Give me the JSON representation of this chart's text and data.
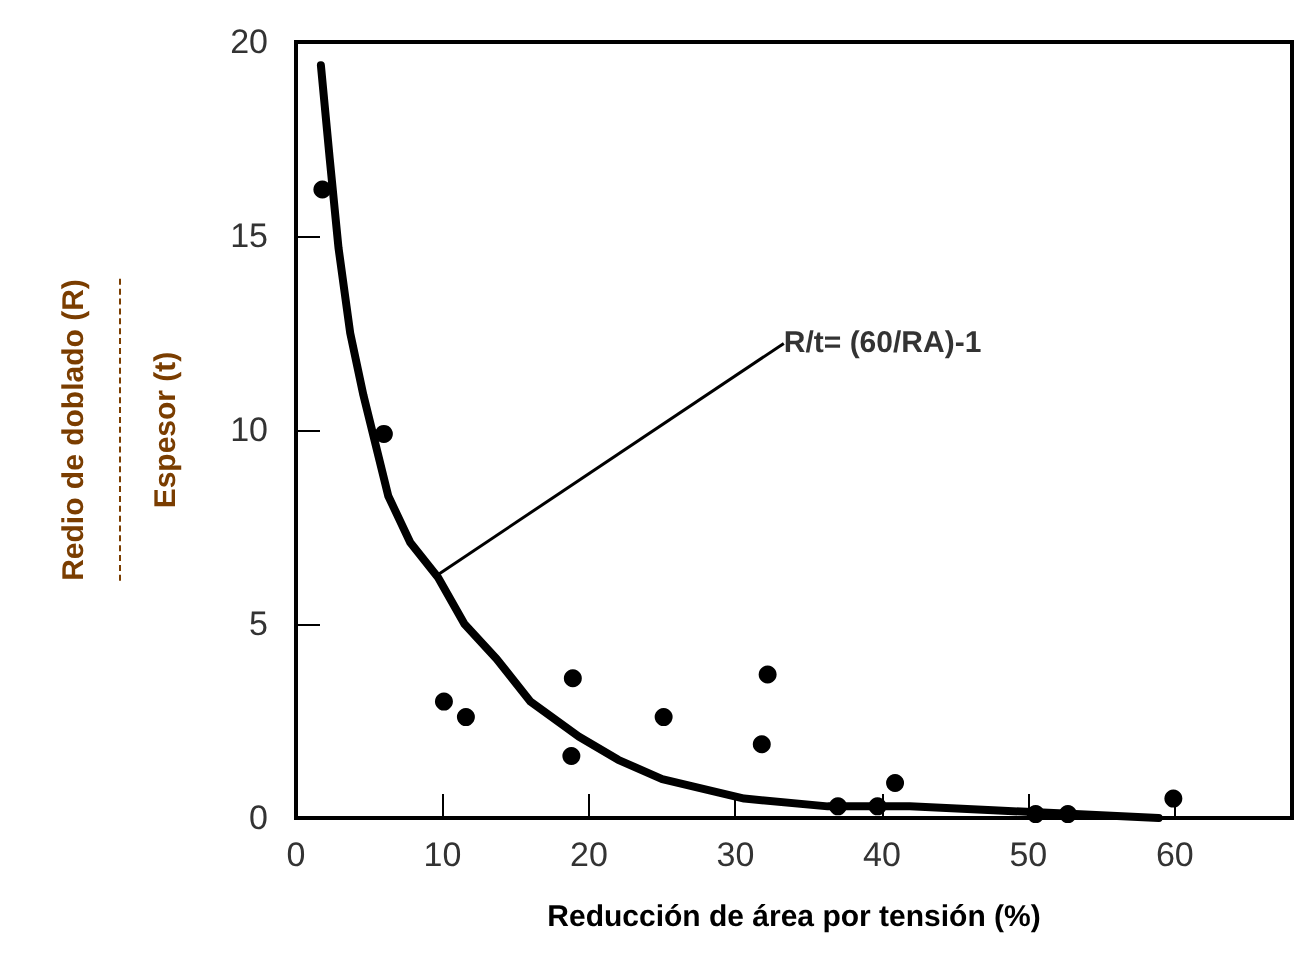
{
  "chart_data": {
    "type": "scatter",
    "xlabel": "Reducción de área por tensión (%)",
    "ylabel": "Redio de doblado (R)\nEspesor (t)",
    "xlim": [
      0,
      68
    ],
    "xticks": [
      0,
      10,
      20,
      30,
      40,
      50,
      60
    ],
    "ylim": [
      0,
      20
    ],
    "yticks": [
      0,
      5,
      10,
      15,
      20
    ],
    "grid": false,
    "marker": "circle",
    "annotations": [
      {
        "text": "R/t= (60/RA)-1",
        "x": 9.4,
        "y": 6.2
      }
    ],
    "series": [
      {
        "color": "#000000",
        "x": [
          1.8,
          6.0,
          10.1,
          11.6,
          18.9,
          18.8,
          25.1,
          32.2,
          31.8,
          37.0,
          39.7,
          40.9,
          50.5,
          52.7,
          59.9
        ],
        "values": [
          16.2,
          9.9,
          3.0,
          2.6,
          3.6,
          1.6,
          2.6,
          3.7,
          1.9,
          0.3,
          0.3,
          0.9,
          0.1,
          0.1,
          0.5
        ]
      },
      {
        "type": "line",
        "color": "#000000",
        "marker": "none",
        "line_style": "solid",
        "x": [
          1.7,
          2.3,
          2.9,
          3.7,
          4.6,
          6.3,
          7.8,
          9.7,
          11.5,
          13.7,
          16.0,
          19.3,
          22.0,
          25.0,
          30.6,
          36.3,
          41.9,
          47.6,
          53.2,
          58.9
        ],
        "values": [
          19.4,
          17.0,
          14.7,
          12.5,
          10.9,
          8.3,
          7.1,
          6.2,
          5.0,
          4.1,
          3.0,
          2.1,
          1.5,
          1.0,
          0.5,
          0.3,
          0.3,
          0.2,
          0.1,
          0.0
        ]
      }
    ]
  }
}
